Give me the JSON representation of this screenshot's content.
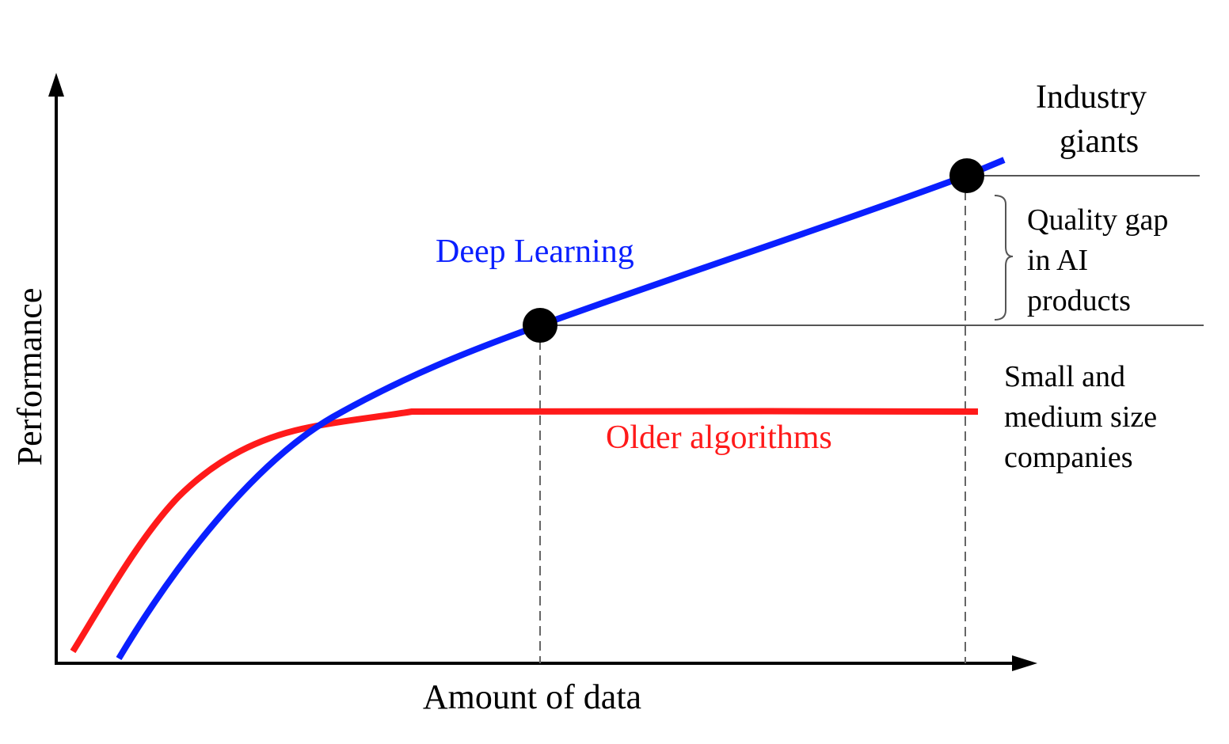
{
  "axes": {
    "x_label": "Amount of data",
    "y_label": "Performance"
  },
  "curves": {
    "deep_learning": {
      "label": "Deep Learning",
      "color": "#0a1fff"
    },
    "older_algorithms": {
      "label": "Older algorithms",
      "color": "#ff1a1a"
    }
  },
  "annotations": {
    "industry_giants": [
      "Industry",
      "giants"
    ],
    "quality_gap": [
      "Quality gap",
      "in AI",
      "products"
    ],
    "small_medium": [
      "Small and",
      "medium size",
      "companies"
    ]
  },
  "colors": {
    "axis": "#000000",
    "guide_line": "#555555",
    "marker": "#000000",
    "text": "#000000"
  }
}
